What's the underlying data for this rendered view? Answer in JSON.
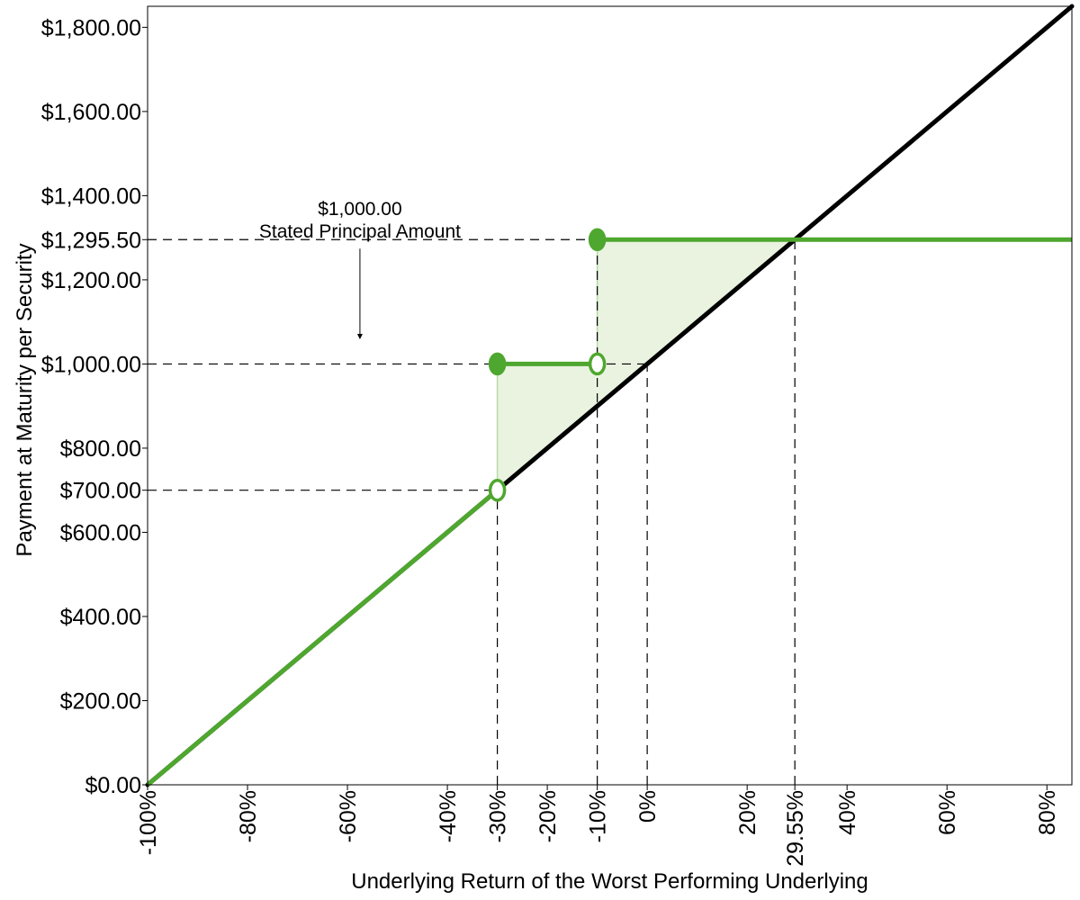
{
  "chart_data": {
    "type": "line",
    "title": "",
    "xlabel": "Underlying Return of the Worst Performing Underlying",
    "ylabel": "Payment at Maturity per Security",
    "xlim": [
      -100,
      85
    ],
    "ylim": [
      0,
      1850
    ],
    "grid": false,
    "x_ticks": [
      {
        "value": -100,
        "label": "-100%"
      },
      {
        "value": -80,
        "label": "-80%"
      },
      {
        "value": -60,
        "label": "-60%"
      },
      {
        "value": -40,
        "label": "-40%"
      },
      {
        "value": -30,
        "label": "-30%"
      },
      {
        "value": -20,
        "label": "-20%"
      },
      {
        "value": -10,
        "label": "-10%"
      },
      {
        "value": 0,
        "label": "0%"
      },
      {
        "value": 20,
        "label": "20%"
      },
      {
        "value": 29.55,
        "label": "29.55%"
      },
      {
        "value": 40,
        "label": "40%"
      },
      {
        "value": 60,
        "label": "60%"
      },
      {
        "value": 80,
        "label": "80%"
      }
    ],
    "y_ticks": [
      {
        "value": 0,
        "label": "$0.00"
      },
      {
        "value": 200,
        "label": "$200.00"
      },
      {
        "value": 400,
        "label": "$400.00"
      },
      {
        "value": 600,
        "label": "$600.00"
      },
      {
        "value": 700,
        "label": "$700.00"
      },
      {
        "value": 800,
        "label": "$800.00"
      },
      {
        "value": 1000,
        "label": "$1,000.00"
      },
      {
        "value": 1200,
        "label": "$1,200.00"
      },
      {
        "value": 1295.5,
        "label": "$1,295.50"
      },
      {
        "value": 1400,
        "label": "$1,400.00"
      },
      {
        "value": 1600,
        "label": "$1,600.00"
      },
      {
        "value": 1800,
        "label": "$1,800.00"
      }
    ],
    "series": [
      {
        "color": "#000000",
        "points": [
          [
            -100,
            0
          ],
          [
            85,
            1850
          ]
        ]
      },
      {
        "color": "#4ea72e",
        "segments": [
          [
            [
              -100,
              0
            ],
            [
              -30,
              700
            ]
          ],
          [
            [
              -30,
              1000
            ],
            [
              -10,
              1000
            ]
          ],
          [
            [
              -10,
              1295.5
            ],
            [
              85,
              1295.5
            ]
          ]
        ]
      }
    ],
    "shaded_regions": [
      {
        "color": "#e9f3e0",
        "points": [
          [
            -30,
            700
          ],
          [
            -30,
            1000
          ],
          [
            -10,
            1000
          ],
          [
            -10,
            900
          ]
        ]
      },
      {
        "color": "#e9f3e0",
        "points": [
          [
            -10,
            900
          ],
          [
            -10,
            1295.5
          ],
          [
            29.55,
            1295.5
          ]
        ]
      }
    ],
    "markers": [
      {
        "x": -30,
        "y": 700,
        "filled": false
      },
      {
        "x": -30,
        "y": 1000,
        "filled": true
      },
      {
        "x": -10,
        "y": 1000,
        "filled": false
      },
      {
        "x": -10,
        "y": 1295.5,
        "filled": true
      }
    ],
    "reference_lines": [
      {
        "y": 700,
        "x_to": -30
      },
      {
        "y": 1000,
        "x_to": 0
      },
      {
        "y": 1295.5,
        "x_to": -10
      },
      {
        "x": -30,
        "y_to": 700
      },
      {
        "x": -10,
        "y_to": 1295.5
      },
      {
        "x": 0,
        "y_to": 1000
      },
      {
        "x": 29.55,
        "y_to": 1295.5
      }
    ],
    "annotation": {
      "line1": "$1,000.00",
      "line2": "Stated Principal Amount",
      "x": -57.5,
      "y_arrow_start": 1295.5,
      "y_arrow_end": 1050
    },
    "colors": {
      "underlying": "#000000",
      "security": "#4ea72e",
      "shade": "#e9f3e0"
    }
  }
}
